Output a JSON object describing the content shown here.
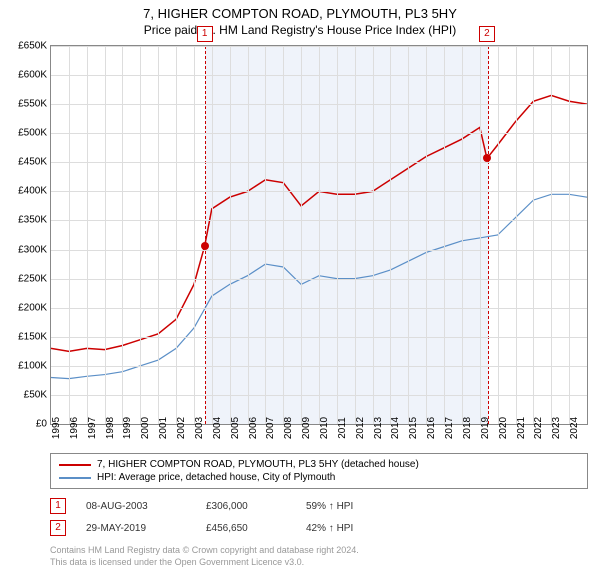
{
  "title": "7, HIGHER COMPTON ROAD, PLYMOUTH, PL3 5HY",
  "subtitle": "Price paid vs. HM Land Registry's House Price Index (HPI)",
  "chart": {
    "type": "line",
    "background_color": "#ffffff",
    "grid_color": "#dddddd",
    "ylim": [
      0,
      650000
    ],
    "ytick_step": 50000,
    "yticks": [
      "£0",
      "£50K",
      "£100K",
      "£150K",
      "£200K",
      "£250K",
      "£300K",
      "£350K",
      "£400K",
      "£450K",
      "£500K",
      "£550K",
      "£600K",
      "£650K"
    ],
    "xlim": [
      1995,
      2025
    ],
    "xticks": [
      "1995",
      "1996",
      "1997",
      "1998",
      "1999",
      "2000",
      "2001",
      "2002",
      "2003",
      "2004",
      "2005",
      "2006",
      "2007",
      "2008",
      "2009",
      "2010",
      "2011",
      "2012",
      "2013",
      "2014",
      "2015",
      "2016",
      "2017",
      "2018",
      "2019",
      "2020",
      "2021",
      "2022",
      "2023",
      "2024"
    ],
    "shaded_region": {
      "from": 2003.6,
      "to": 2019.4
    },
    "series": [
      {
        "name": "price_paid",
        "label": "7, HIGHER COMPTON ROAD, PLYMOUTH, PL3 5HY (detached house)",
        "color": "#cc0000",
        "line_width": 1.5,
        "points": [
          [
            1995,
            130000
          ],
          [
            1996,
            125000
          ],
          [
            1997,
            130000
          ],
          [
            1998,
            128000
          ],
          [
            1999,
            135000
          ],
          [
            2000,
            145000
          ],
          [
            2001,
            155000
          ],
          [
            2002,
            180000
          ],
          [
            2003,
            240000
          ],
          [
            2003.6,
            306000
          ],
          [
            2004,
            370000
          ],
          [
            2005,
            390000
          ],
          [
            2006,
            400000
          ],
          [
            2007,
            420000
          ],
          [
            2008,
            415000
          ],
          [
            2009,
            375000
          ],
          [
            2010,
            400000
          ],
          [
            2011,
            395000
          ],
          [
            2012,
            395000
          ],
          [
            2013,
            400000
          ],
          [
            2014,
            420000
          ],
          [
            2015,
            440000
          ],
          [
            2016,
            460000
          ],
          [
            2017,
            475000
          ],
          [
            2018,
            490000
          ],
          [
            2019,
            510000
          ],
          [
            2019.4,
            456650
          ],
          [
            2020,
            480000
          ],
          [
            2021,
            520000
          ],
          [
            2022,
            555000
          ],
          [
            2023,
            565000
          ],
          [
            2024,
            555000
          ],
          [
            2025,
            550000
          ]
        ]
      },
      {
        "name": "hpi",
        "label": "HPI: Average price, detached house, City of Plymouth",
        "color": "#5b8fc7",
        "line_width": 1.2,
        "points": [
          [
            1995,
            80000
          ],
          [
            1996,
            78000
          ],
          [
            1997,
            82000
          ],
          [
            1998,
            85000
          ],
          [
            1999,
            90000
          ],
          [
            2000,
            100000
          ],
          [
            2001,
            110000
          ],
          [
            2002,
            130000
          ],
          [
            2003,
            165000
          ],
          [
            2004,
            220000
          ],
          [
            2005,
            240000
          ],
          [
            2006,
            255000
          ],
          [
            2007,
            275000
          ],
          [
            2008,
            270000
          ],
          [
            2009,
            240000
          ],
          [
            2010,
            255000
          ],
          [
            2011,
            250000
          ],
          [
            2012,
            250000
          ],
          [
            2013,
            255000
          ],
          [
            2014,
            265000
          ],
          [
            2015,
            280000
          ],
          [
            2016,
            295000
          ],
          [
            2017,
            305000
          ],
          [
            2018,
            315000
          ],
          [
            2019,
            320000
          ],
          [
            2020,
            325000
          ],
          [
            2021,
            355000
          ],
          [
            2022,
            385000
          ],
          [
            2023,
            395000
          ],
          [
            2024,
            395000
          ],
          [
            2025,
            390000
          ]
        ]
      }
    ],
    "markers": [
      {
        "num": "1",
        "x": 2003.6,
        "y": 306000
      },
      {
        "num": "2",
        "x": 2019.4,
        "y": 456650
      }
    ]
  },
  "legend": {
    "items": [
      {
        "color": "#cc0000",
        "label": "7, HIGHER COMPTON ROAD, PLYMOUTH, PL3 5HY (detached house)"
      },
      {
        "color": "#5b8fc7",
        "label": "HPI: Average price, detached house, City of Plymouth"
      }
    ]
  },
  "sales": [
    {
      "num": "1",
      "date": "08-AUG-2003",
      "price": "£306,000",
      "delta": "59% ↑ HPI"
    },
    {
      "num": "2",
      "date": "29-MAY-2019",
      "price": "£456,650",
      "delta": "42% ↑ HPI"
    }
  ],
  "footer_line1": "Contains HM Land Registry data © Crown copyright and database right 2024.",
  "footer_line2": "This data is licensed under the Open Government Licence v3.0."
}
